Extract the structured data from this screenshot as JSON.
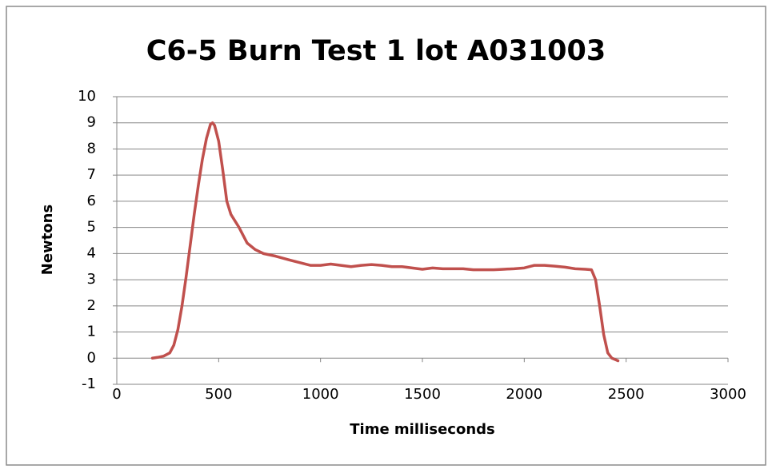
{
  "chart_data": {
    "type": "line",
    "title": "C6-5 Burn Test 1 lot A031003",
    "x_label": "Time milliseconds",
    "y_label": "Newtons",
    "x": [
      175,
      200,
      230,
      260,
      280,
      300,
      320,
      340,
      360,
      380,
      400,
      420,
      440,
      460,
      470,
      480,
      500,
      520,
      540,
      560,
      600,
      640,
      680,
      720,
      780,
      850,
      900,
      950,
      1000,
      1050,
      1100,
      1150,
      1200,
      1250,
      1300,
      1350,
      1400,
      1450,
      1500,
      1550,
      1600,
      1650,
      1700,
      1750,
      1800,
      1850,
      1900,
      1950,
      2000,
      2050,
      2100,
      2150,
      2200,
      2250,
      2300,
      2330,
      2350,
      2370,
      2390,
      2410,
      2430,
      2460
    ],
    "series": [
      {
        "color": "#c0504d",
        "values": [
          0,
          0.03,
          0.08,
          0.2,
          0.5,
          1.1,
          2.0,
          3.1,
          4.3,
          5.5,
          6.6,
          7.6,
          8.4,
          8.95,
          9.0,
          8.9,
          8.3,
          7.2,
          6.0,
          5.5,
          5.0,
          4.4,
          4.15,
          4.0,
          3.9,
          3.75,
          3.65,
          3.55,
          3.55,
          3.6,
          3.55,
          3.5,
          3.55,
          3.58,
          3.55,
          3.5,
          3.5,
          3.45,
          3.4,
          3.45,
          3.42,
          3.42,
          3.42,
          3.38,
          3.38,
          3.38,
          3.4,
          3.42,
          3.45,
          3.55,
          3.55,
          3.52,
          3.48,
          3.42,
          3.4,
          3.38,
          3.0,
          2.0,
          0.9,
          0.2,
          0.0,
          -0.1
        ]
      }
    ],
    "xlim": [
      0,
      3000
    ],
    "xticks": [
      0,
      500,
      1000,
      1500,
      2000,
      2500,
      3000
    ],
    "ylim": [
      -1,
      10
    ],
    "yticks": [
      -1,
      0,
      1,
      2,
      3,
      4,
      5,
      6,
      7,
      8,
      9,
      10
    ],
    "grid": true
  }
}
